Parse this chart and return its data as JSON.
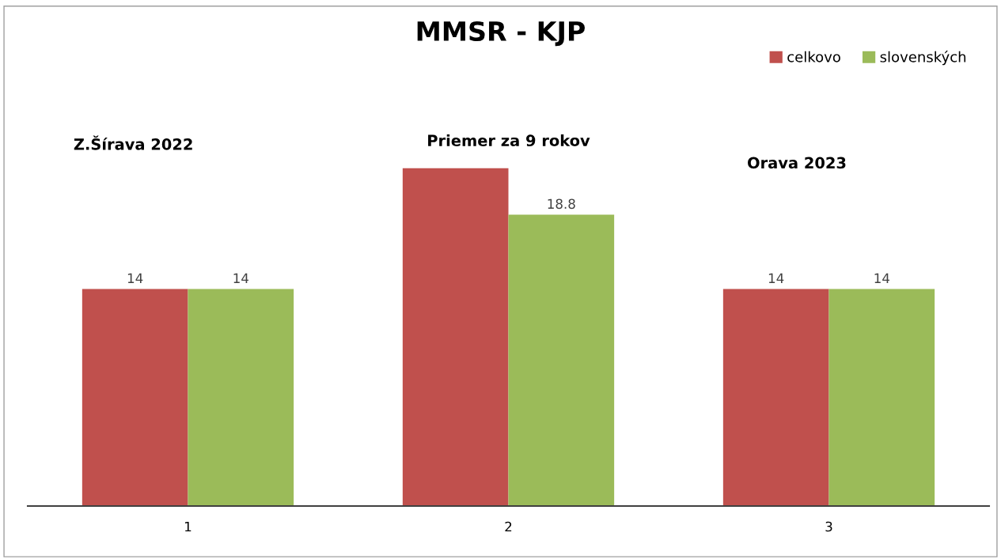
{
  "chart_data": {
    "type": "bar",
    "title": "MMSR - KJP",
    "categories": [
      "1",
      "2",
      "3"
    ],
    "series": [
      {
        "name": "celkovo",
        "color": "#c0504d",
        "values": [
          14,
          21.8,
          14
        ],
        "value_labels": [
          "14",
          null,
          "14"
        ]
      },
      {
        "name": "slovenských",
        "color": "#9bbb59",
        "values": [
          14,
          18.8,
          14
        ],
        "value_labels": [
          "14",
          "18.8",
          "14"
        ]
      }
    ],
    "annotations": [
      "Z.Šírava 2022",
      "Priemer za 9 rokov",
      "Orava 2023"
    ],
    "legend": "top right",
    "grid": false
  }
}
